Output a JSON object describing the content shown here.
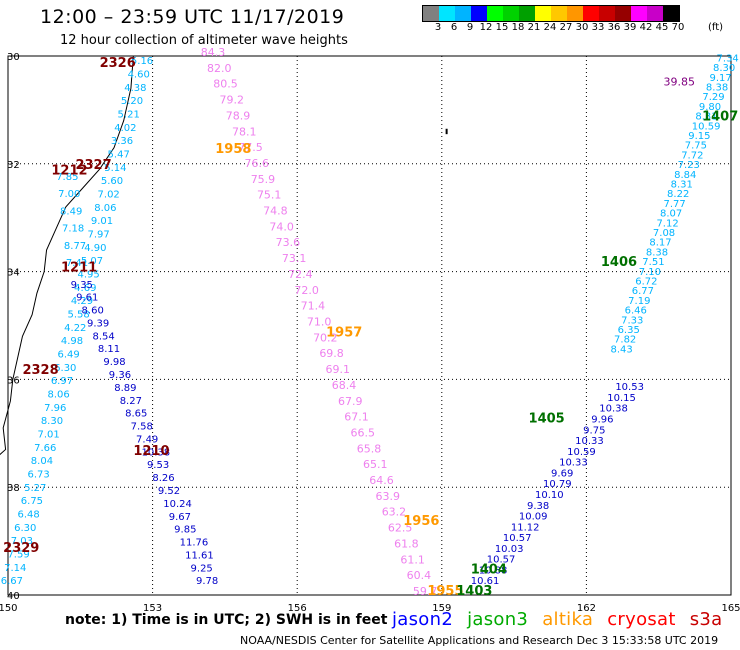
{
  "title": "12:00 – 23:59 UTC 11/17/2019",
  "subtitle": "12 hour collection of altimeter wave heights",
  "scale": {
    "colors": [
      "#808080",
      "#00e5ff",
      "#00b4ff",
      "#0000ff",
      "#00ff00",
      "#00d200",
      "#00a000",
      "#ffff00",
      "#ffc800",
      "#ff9600",
      "#ff0000",
      "#c80000",
      "#960000",
      "#ff00ff",
      "#c800c8",
      "#000000"
    ],
    "labels": [
      "3",
      "6",
      "9",
      "12",
      "15",
      "18",
      "21",
      "24",
      "27",
      "30",
      "33",
      "36",
      "39",
      "42",
      "45",
      "70"
    ],
    "unit": "(ft)"
  },
  "axes": {
    "x_ticks": [
      "150",
      "153",
      "156",
      "159",
      "162",
      "165"
    ],
    "y_ticks": [
      "30",
      "32",
      "34",
      "36",
      "38",
      "40"
    ]
  },
  "time_labels": [
    {
      "text": "2326",
      "color": "#800000",
      "lon": 151.9,
      "lat": -30.2
    },
    {
      "text": "2327",
      "color": "#800000",
      "lon": 151.4,
      "lat": -32.1
    },
    {
      "text": "1212",
      "color": "#800000",
      "lon": 150.9,
      "lat": -32.2
    },
    {
      "text": "1211",
      "color": "#800000",
      "lon": 151.1,
      "lat": -34.0
    },
    {
      "text": "2328",
      "color": "#800000",
      "lon": 150.3,
      "lat": -35.9
    },
    {
      "text": "1210",
      "color": "#800000",
      "lon": 152.6,
      "lat": -37.4
    },
    {
      "text": "2329",
      "color": "#800000",
      "lon": 149.9,
      "lat": -39.2
    },
    {
      "text": "1958",
      "color": "#ff9900",
      "lon": 154.3,
      "lat": -31.8
    },
    {
      "text": "1957",
      "color": "#ff9900",
      "lon": 156.6,
      "lat": -35.2
    },
    {
      "text": "1956",
      "color": "#ff9900",
      "lon": 158.2,
      "lat": -38.7
    },
    {
      "text": "1955",
      "color": "#ff9900",
      "lon": 158.7,
      "lat": -40.0
    },
    {
      "text": "1407",
      "color": "#007000",
      "lon": 164.4,
      "lat": -31.2
    },
    {
      "text": "1406",
      "color": "#007000",
      "lon": 162.3,
      "lat": -33.9
    },
    {
      "text": "1405",
      "color": "#007000",
      "lon": 160.8,
      "lat": -36.8
    },
    {
      "text": "1404",
      "color": "#007000",
      "lon": 159.6,
      "lat": -39.6
    },
    {
      "text": "1403",
      "color": "#007000",
      "lon": 159.3,
      "lat": -40.0
    }
  ],
  "tracks": {
    "jason3_west": {
      "color": "#00b4ff",
      "values": [
        "5.16",
        "4.60",
        "4.38",
        "5.20",
        "5.21",
        "4.02",
        "3.36",
        "5.47",
        "5.14",
        "5.60",
        "7.02",
        "8.06",
        "9.01",
        "7.97",
        "4.90",
        "5.07",
        "4.95",
        "4.69",
        "4.29",
        "5.58",
        "4.22",
        "4.98",
        "6.49",
        "6.30",
        "6.97",
        "8.06",
        "7.96",
        "8.30",
        "7.01",
        "7.66",
        "8.04",
        "6.73",
        "5.27",
        "6.75",
        "6.48",
        "6.30",
        "7.03",
        "7.59",
        "7.14",
        "6.67"
      ]
    },
    "jason2_west_a": {
      "color": "#00b4ff",
      "values": [
        "7.85",
        "7.00",
        "8.49",
        "7.18",
        "8.77",
        "7.41"
      ]
    },
    "jason2_west_b": {
      "color": "#0000c8",
      "values": [
        "9.35",
        "9.61",
        "8.60",
        "9.39",
        "8.54",
        "8.11",
        "9.98",
        "9.36",
        "8.89",
        "8.27",
        "8.65",
        "7.58",
        "7.49",
        "10.38",
        "9.53",
        "8.26",
        "9.52",
        "10.24",
        "9.67",
        "9.85",
        "11.76",
        "11.61",
        "9.25",
        "9.78"
      ]
    },
    "jason2_east": {
      "color": "#0000c8",
      "values": [
        "10.53",
        "10.15",
        "10.38",
        "9.96",
        "9.75",
        "10.33",
        "10.59",
        "10.33",
        "9.69",
        "10.79",
        "10.10",
        "9.38",
        "10.09",
        "11.12",
        "10.57",
        "10.03",
        "10.57",
        "10.88",
        "10.61"
      ]
    },
    "jason3_east": {
      "color": "#00b4ff",
      "values": [
        "7.34",
        "8.30",
        "9.17",
        "8.38",
        "7.29",
        "9.80",
        "8.31",
        "10.59",
        "9.15",
        "7.75",
        "7.72",
        "7.23",
        "8.84",
        "8.31",
        "8.22",
        "7.77",
        "8.07",
        "7.12",
        "7.08",
        "8.17",
        "8.38",
        "7.51",
        "7.10",
        "6.72",
        "6.77",
        "7.19",
        "6.46",
        "7.33",
        "6.35",
        "7.82",
        "8.43"
      ]
    },
    "altika_pink": {
      "color": "#ee80ee",
      "values": [
        "84.3",
        "82.0",
        "80.5",
        "79.2",
        "78.9",
        "78.1",
        "77.5",
        "76.6",
        "75.9",
        "75.1",
        "74.8",
        "74.0",
        "73.6",
        "73.1",
        "72.4",
        "72.0",
        "71.4",
        "71.0",
        "70.2",
        "69.8",
        "69.1",
        "68.4",
        "67.9",
        "67.1",
        "66.5",
        "65.8",
        "65.1",
        "64.6",
        "63.9",
        "63.2",
        "62.5",
        "61.8",
        "61.1",
        "60.4",
        "59.7"
      ]
    }
  },
  "extra_labels": [
    {
      "text": "39.85",
      "color": "#800080",
      "lon": 163.6,
      "lat": -30.55
    }
  ],
  "footnote": "note: 1) Time is in UTC; 2) SWH is in feet",
  "credit": "NOAA/NESDIS Center for Satellite Applications and Research   Dec  3 15:33:58 UTC 2019",
  "legend": [
    {
      "label": "jason2",
      "color": "#0000ff"
    },
    {
      "label": "jason3",
      "color": "#00aa00"
    },
    {
      "label": "altika",
      "color": "#ff9900"
    },
    {
      "label": "cryosat",
      "color": "#ff0000"
    },
    {
      "label": "s3a",
      "color": "#c80000"
    }
  ]
}
